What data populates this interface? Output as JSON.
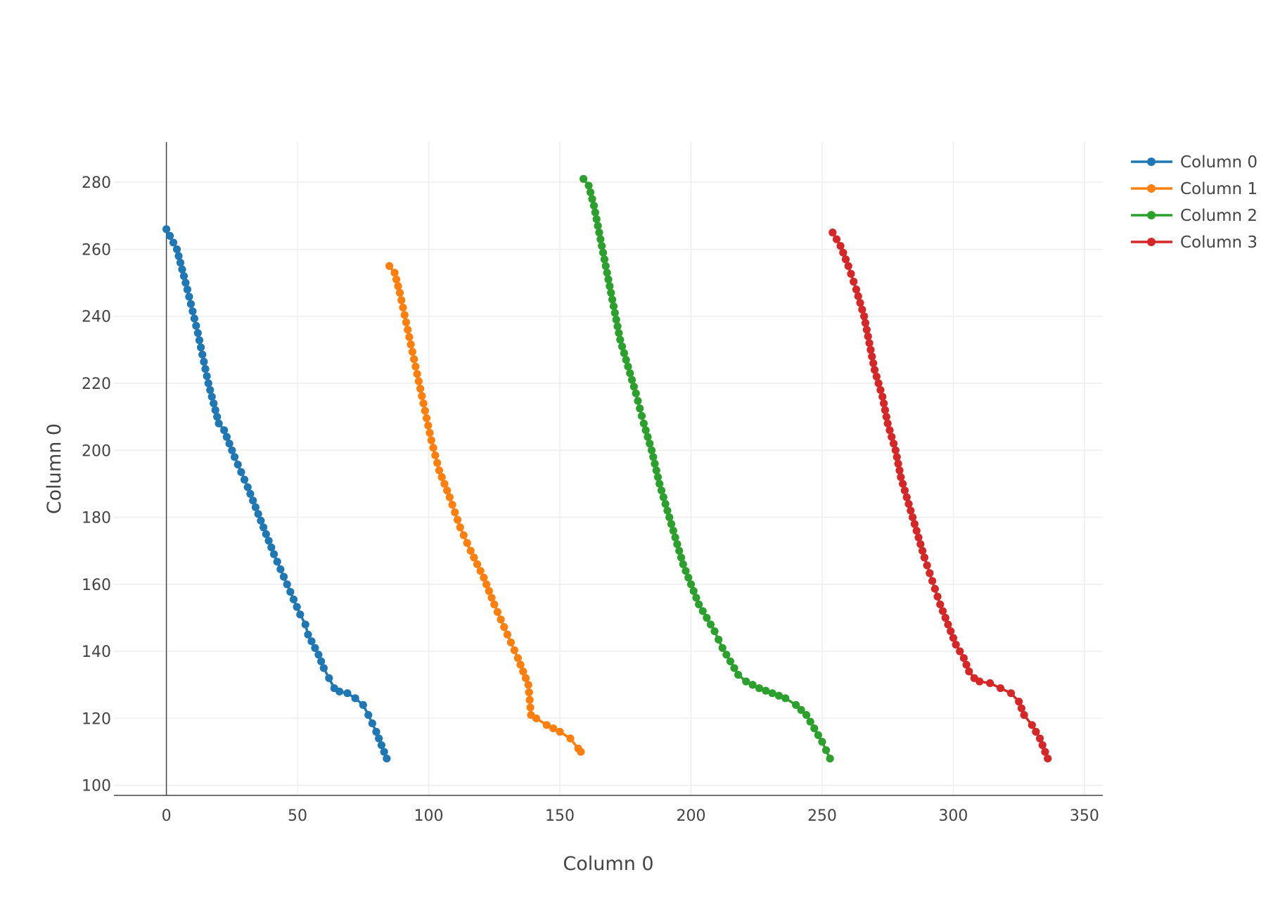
{
  "chart_data": {
    "type": "line",
    "mode": "lines+markers",
    "xlabel": "Column 0",
    "ylabel": "Column 0",
    "xlim": [
      -20,
      357
    ],
    "ylim": [
      97,
      292
    ],
    "xticks": [
      0,
      50,
      100,
      150,
      200,
      250,
      300,
      350
    ],
    "yticks": [
      100,
      120,
      140,
      160,
      180,
      200,
      220,
      240,
      260,
      280
    ],
    "grid": true,
    "zero_line_x": true,
    "legend_position": "top-right",
    "series": [
      {
        "name": "Column 0",
        "color": "#1f77b4",
        "points": [
          [
            0,
            266
          ],
          [
            4,
            260
          ],
          [
            8,
            248
          ],
          [
            12,
            235
          ],
          [
            16,
            220
          ],
          [
            20,
            208
          ],
          [
            22,
            206
          ],
          [
            26,
            198
          ],
          [
            31,
            189
          ],
          [
            36,
            179
          ],
          [
            41,
            169
          ],
          [
            46,
            160
          ],
          [
            51,
            151
          ],
          [
            53,
            148
          ],
          [
            54,
            145
          ],
          [
            58,
            139
          ],
          [
            60,
            135
          ],
          [
            62,
            132
          ],
          [
            64,
            129
          ],
          [
            66,
            128
          ],
          [
            69,
            127.5
          ],
          [
            72,
            126
          ],
          [
            75,
            124
          ],
          [
            77,
            121
          ],
          [
            80,
            116
          ],
          [
            82,
            112
          ],
          [
            84,
            108
          ]
        ]
      },
      {
        "name": "Column 1",
        "color": "#ff7f0e",
        "points": [
          [
            85,
            255
          ],
          [
            87,
            253
          ],
          [
            89,
            247
          ],
          [
            92,
            236
          ],
          [
            95,
            225
          ],
          [
            98,
            214
          ],
          [
            101,
            203
          ],
          [
            104,
            194
          ],
          [
            108,
            186
          ],
          [
            112,
            177
          ],
          [
            116,
            170
          ],
          [
            121,
            162
          ],
          [
            125,
            154
          ],
          [
            130,
            145
          ],
          [
            134,
            138
          ],
          [
            137,
            132
          ],
          [
            138,
            130
          ],
          [
            139,
            121
          ],
          [
            141,
            120
          ],
          [
            145,
            118
          ],
          [
            150,
            116
          ],
          [
            154,
            114
          ],
          [
            157,
            111
          ],
          [
            158,
            110
          ]
        ]
      },
      {
        "name": "Column 2",
        "color": "#2ca02c",
        "points": [
          [
            159,
            281
          ],
          [
            161,
            279
          ],
          [
            163,
            273
          ],
          [
            165,
            265
          ],
          [
            167,
            257
          ],
          [
            169,
            249
          ],
          [
            171,
            241
          ],
          [
            173,
            233
          ],
          [
            176,
            225
          ],
          [
            179,
            217
          ],
          [
            182,
            208
          ],
          [
            185,
            200
          ],
          [
            188,
            190
          ],
          [
            191,
            182
          ],
          [
            194,
            174
          ],
          [
            197,
            166
          ],
          [
            200,
            160
          ],
          [
            203,
            154
          ],
          [
            206,
            150
          ],
          [
            209,
            146
          ],
          [
            212,
            141
          ],
          [
            215,
            137
          ],
          [
            218,
            133
          ],
          [
            221,
            131
          ],
          [
            226,
            129
          ],
          [
            231,
            127.5
          ],
          [
            236,
            126
          ],
          [
            240,
            124
          ],
          [
            244,
            121
          ],
          [
            247,
            117
          ],
          [
            250,
            113
          ],
          [
            253,
            108
          ]
        ]
      },
      {
        "name": "Column 3",
        "color": "#d62728",
        "points": [
          [
            254,
            265
          ],
          [
            257,
            261
          ],
          [
            260,
            255
          ],
          [
            263,
            248
          ],
          [
            266,
            240
          ],
          [
            268,
            232
          ],
          [
            270,
            224
          ],
          [
            273,
            216
          ],
          [
            275,
            208
          ],
          [
            278,
            200
          ],
          [
            280,
            192
          ],
          [
            283,
            184
          ],
          [
            286,
            176
          ],
          [
            289,
            168
          ],
          [
            292,
            161
          ],
          [
            295,
            154
          ],
          [
            298,
            148
          ],
          [
            301,
            142
          ],
          [
            304,
            138
          ],
          [
            306,
            134
          ],
          [
            308,
            132
          ],
          [
            310,
            131
          ],
          [
            314,
            130.5
          ],
          [
            318,
            129
          ],
          [
            322,
            127.5
          ],
          [
            325,
            125
          ],
          [
            327,
            121
          ],
          [
            330,
            118
          ],
          [
            333,
            114
          ],
          [
            336,
            108
          ]
        ]
      }
    ]
  }
}
